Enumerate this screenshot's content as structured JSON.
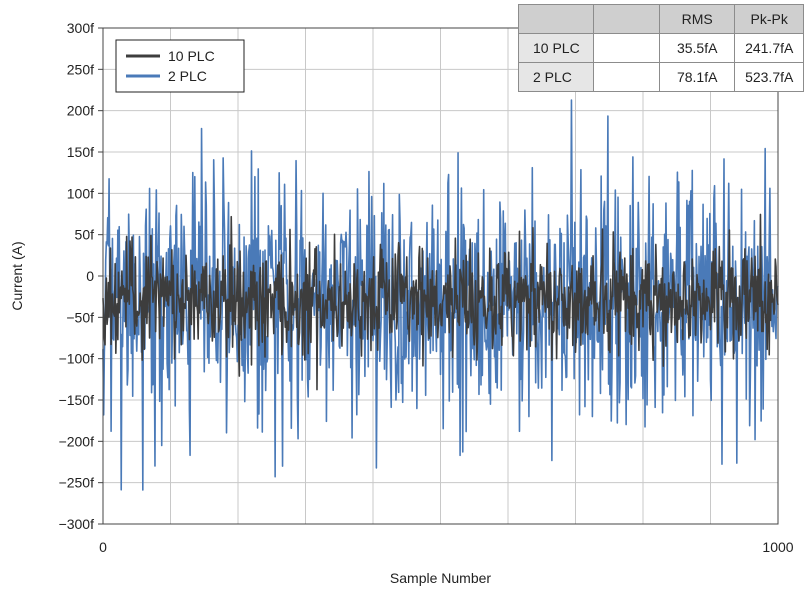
{
  "chart_data": {
    "type": "line",
    "title": "",
    "xlabel": "Sample Number",
    "ylabel": "Current (A)",
    "xlim": [
      0,
      1000
    ],
    "ylim": [
      -3e-13,
      3e-13
    ],
    "x_tick_labels": [
      "0",
      "1000"
    ],
    "y_tick_labels": [
      "300f",
      "250f",
      "200f",
      "150f",
      "100f",
      "50f",
      "0",
      "−50f",
      "−100f",
      "−150f",
      "−200f",
      "−250f",
      "−300f"
    ],
    "grid": true,
    "legend_position": "top-left",
    "series": [
      {
        "name": "10 PLC",
        "color": "#3d3d3d",
        "rms_fA": 35.5,
        "pk_pk_fA": 241.7,
        "mean_fA": -28,
        "min_fA": -150,
        "max_fA": 90
      },
      {
        "name": "2 PLC",
        "color": "#4a7ab8",
        "rms_fA": 78.1,
        "pk_pk_fA": 523.7,
        "mean_fA": -30,
        "min_fA": -265,
        "max_fA": 253
      }
    ],
    "table": {
      "headers": [
        "",
        "RMS",
        "Pk-Pk"
      ],
      "rows": [
        [
          "10 PLC",
          "35.5fA",
          "241.7fA"
        ],
        [
          "2 PLC",
          "78.1fA",
          "523.7fA"
        ]
      ]
    }
  }
}
